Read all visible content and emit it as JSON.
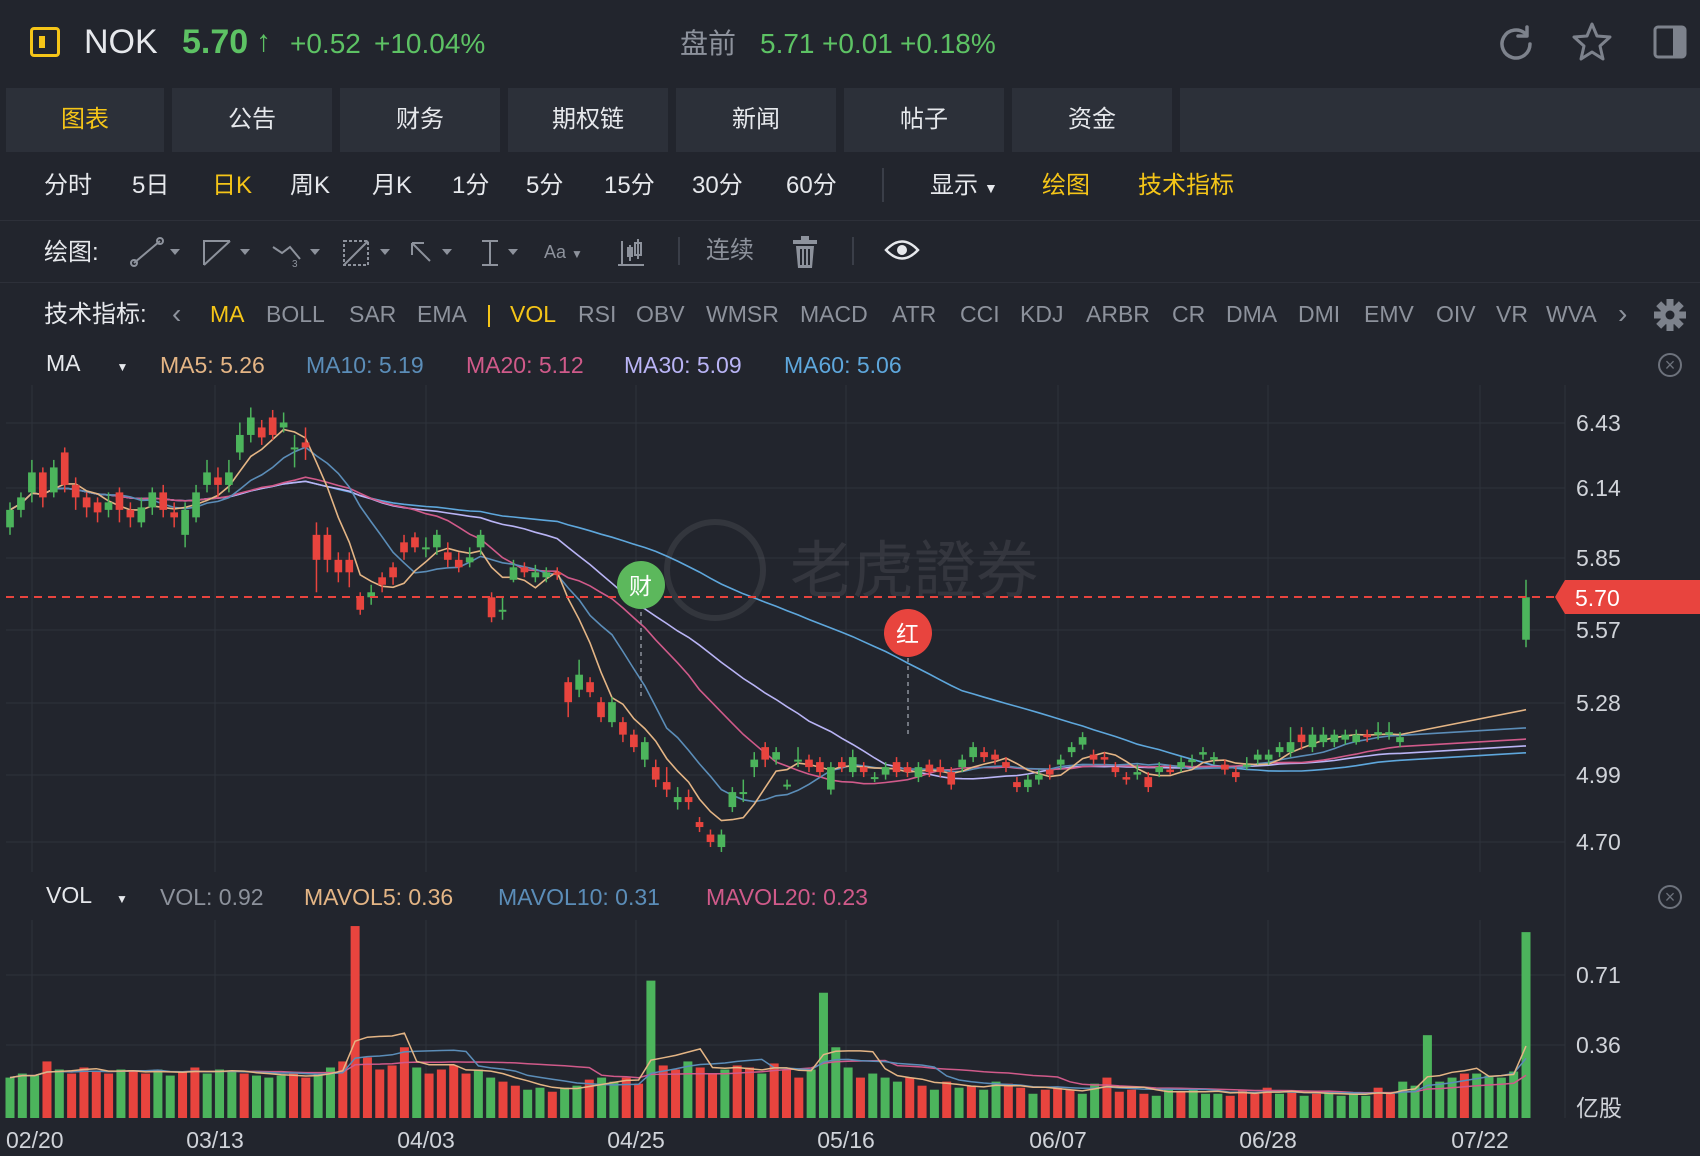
{
  "header": {
    "symbol": "NOK",
    "price": "5.70",
    "arrow": "↑",
    "change": "+0.52",
    "change_pct": "+10.04%",
    "premarket_label": "盘前",
    "premarket_price": "5.71",
    "premarket_change": "+0.01",
    "premarket_pct": "+0.18%"
  },
  "tabs": [
    "图表",
    "公告",
    "财务",
    "期权链",
    "新闻",
    "帖子",
    "资金"
  ],
  "periods": [
    "分时",
    "5日",
    "日K",
    "周K",
    "月K",
    "1分",
    "5分",
    "15分",
    "30分",
    "60分"
  ],
  "period_active": "日K",
  "display_label": "显示",
  "draw_label": "绘图",
  "tech_label": "技术指标",
  "drawbar": {
    "label": "绘图:",
    "continuous": "连续",
    "font_tool": "Aa"
  },
  "indicator_row": {
    "label": "技术指标:",
    "items": [
      "MA",
      "BOLL",
      "SAR",
      "EMA",
      "VOL",
      "RSI",
      "OBV",
      "WMSR",
      "MACD",
      "ATR",
      "CCI",
      "KDJ",
      "ARBR",
      "CR",
      "DMA",
      "DMI",
      "EMV",
      "OIV",
      "VR",
      "WVA"
    ]
  },
  "main_legend": {
    "name": "MA",
    "items": [
      {
        "text": "MA5: 5.26",
        "color": "#e4b585"
      },
      {
        "text": "MA10: 5.19",
        "color": "#5b8db8"
      },
      {
        "text": "MA20: 5.12",
        "color": "#d05a8a"
      },
      {
        "text": "MA30: 5.09",
        "color": "#b9b4f5"
      },
      {
        "text": "MA60: 5.06",
        "color": "#5ea7dc"
      }
    ]
  },
  "vol_legend": {
    "name": "VOL",
    "items": [
      {
        "text": "VOL: 0.92",
        "color": "#8d929c"
      },
      {
        "text": "MAVOL5: 0.36",
        "color": "#e4b585"
      },
      {
        "text": "MAVOL10: 0.31",
        "color": "#5b8db8"
      },
      {
        "text": "MAVOL20: 0.23",
        "color": "#d05a8a"
      }
    ]
  },
  "price_axis": [
    "6.43",
    "6.14",
    "5.85",
    "5.57",
    "5.28",
    "4.99",
    "4.70"
  ],
  "current_price_tag": "5.70",
  "vol_axis": [
    "0.71",
    "0.36"
  ],
  "vol_unit": "亿股",
  "date_axis": [
    "02/20",
    "03/13",
    "04/03",
    "04/25",
    "05/16",
    "06/07",
    "06/28",
    "07/22"
  ],
  "markers": {
    "earnings": "财",
    "dividend": "红"
  },
  "watermark": "老虎證券",
  "colors": {
    "up": "#4cb45c",
    "down": "#e8443e",
    "accent": "#f5c518",
    "price_up": "#5dc264"
  },
  "chart_data": {
    "type": "candlestick",
    "title": "NOK",
    "ylim": [
      4.6,
      6.55
    ],
    "candles": [
      {
        "o": 5.98,
        "c": 6.05,
        "h": 6.08,
        "l": 5.95
      },
      {
        "o": 6.05,
        "c": 6.1,
        "h": 6.12,
        "l": 6.02
      },
      {
        "o": 6.12,
        "c": 6.2,
        "h": 6.25,
        "l": 6.08
      },
      {
        "o": 6.2,
        "c": 6.1,
        "h": 6.22,
        "l": 6.06
      },
      {
        "o": 6.12,
        "c": 6.22,
        "h": 6.25,
        "l": 6.1
      },
      {
        "o": 6.28,
        "c": 6.15,
        "h": 6.3,
        "l": 6.12
      },
      {
        "o": 6.15,
        "c": 6.1,
        "h": 6.18,
        "l": 6.05
      },
      {
        "o": 6.1,
        "c": 6.06,
        "h": 6.12,
        "l": 6.02
      },
      {
        "o": 6.08,
        "c": 6.04,
        "h": 6.1,
        "l": 6.0
      },
      {
        "o": 6.05,
        "c": 6.08,
        "h": 6.12,
        "l": 6.02
      },
      {
        "o": 6.12,
        "c": 6.05,
        "h": 6.14,
        "l": 6.0
      },
      {
        "o": 6.05,
        "c": 6.02,
        "h": 6.08,
        "l": 5.98
      },
      {
        "o": 6.0,
        "c": 6.06,
        "h": 6.1,
        "l": 5.98
      },
      {
        "o": 6.06,
        "c": 6.12,
        "h": 6.14,
        "l": 6.03
      },
      {
        "o": 6.12,
        "c": 6.05,
        "h": 6.15,
        "l": 6.02
      },
      {
        "o": 6.04,
        "c": 6.02,
        "h": 6.08,
        "l": 5.98
      },
      {
        "o": 5.95,
        "c": 6.05,
        "h": 6.08,
        "l": 5.9
      },
      {
        "o": 6.02,
        "c": 6.12,
        "h": 6.15,
        "l": 6.0
      },
      {
        "o": 6.15,
        "c": 6.2,
        "h": 6.25,
        "l": 6.12
      },
      {
        "o": 6.18,
        "c": 6.15,
        "h": 6.22,
        "l": 6.1
      },
      {
        "o": 6.15,
        "c": 6.2,
        "h": 6.25,
        "l": 6.12
      },
      {
        "o": 6.28,
        "c": 6.35,
        "h": 6.4,
        "l": 6.25
      },
      {
        "o": 6.35,
        "c": 6.42,
        "h": 6.46,
        "l": 6.32
      },
      {
        "o": 6.38,
        "c": 6.34,
        "h": 6.41,
        "l": 6.31
      },
      {
        "o": 6.42,
        "c": 6.35,
        "h": 6.45,
        "l": 6.33
      },
      {
        "o": 6.38,
        "c": 6.4,
        "h": 6.44,
        "l": 6.36
      },
      {
        "o": 6.3,
        "c": 6.3,
        "h": 6.35,
        "l": 6.22
      },
      {
        "o": 6.32,
        "c": 6.3,
        "h": 6.38,
        "l": 6.25
      },
      {
        "o": 5.95,
        "c": 5.85,
        "h": 6.0,
        "l": 5.72
      },
      {
        "o": 5.95,
        "c": 5.85,
        "h": 5.98,
        "l": 5.8
      },
      {
        "o": 5.85,
        "c": 5.8,
        "h": 5.88,
        "l": 5.76
      },
      {
        "o": 5.85,
        "c": 5.8,
        "h": 5.88,
        "l": 5.74
      },
      {
        "o": 5.7,
        "c": 5.65,
        "h": 5.72,
        "l": 5.63
      },
      {
        "o": 5.7,
        "c": 5.72,
        "h": 5.75,
        "l": 5.67
      },
      {
        "o": 5.78,
        "c": 5.75,
        "h": 5.8,
        "l": 5.72
      },
      {
        "o": 5.82,
        "c": 5.78,
        "h": 5.84,
        "l": 5.75
      },
      {
        "o": 5.92,
        "c": 5.88,
        "h": 5.95,
        "l": 5.85
      },
      {
        "o": 5.94,
        "c": 5.9,
        "h": 5.96,
        "l": 5.88
      },
      {
        "o": 5.9,
        "c": 5.9,
        "h": 5.94,
        "l": 5.86
      },
      {
        "o": 5.9,
        "c": 5.95,
        "h": 5.97,
        "l": 5.87
      },
      {
        "o": 5.88,
        "c": 5.85,
        "h": 5.92,
        "l": 5.82
      },
      {
        "o": 5.85,
        "c": 5.82,
        "h": 5.88,
        "l": 5.8
      },
      {
        "o": 5.84,
        "c": 5.86,
        "h": 5.9,
        "l": 5.82
      },
      {
        "o": 5.9,
        "c": 5.95,
        "h": 5.97,
        "l": 5.87
      },
      {
        "o": 5.7,
        "c": 5.62,
        "h": 5.72,
        "l": 5.6
      },
      {
        "o": 5.65,
        "c": 5.65,
        "h": 5.7,
        "l": 5.61
      },
      {
        "o": 5.77,
        "c": 5.82,
        "h": 5.85,
        "l": 5.76
      },
      {
        "o": 5.82,
        "c": 5.8,
        "h": 5.84,
        "l": 5.78
      },
      {
        "o": 5.78,
        "c": 5.8,
        "h": 5.83,
        "l": 5.76
      },
      {
        "o": 5.78,
        "c": 5.8,
        "h": 5.82,
        "l": 5.76
      },
      {
        "o": 5.8,
        "c": 5.79,
        "h": 5.82,
        "l": 5.77
      },
      {
        "o": 5.36,
        "c": 5.28,
        "h": 5.38,
        "l": 5.22
      },
      {
        "o": 5.33,
        "c": 5.39,
        "h": 5.45,
        "l": 5.3
      },
      {
        "o": 5.36,
        "c": 5.32,
        "h": 5.38,
        "l": 5.3
      },
      {
        "o": 5.28,
        "c": 5.22,
        "h": 5.3,
        "l": 5.2
      },
      {
        "o": 5.2,
        "c": 5.28,
        "h": 5.3,
        "l": 5.18
      },
      {
        "o": 5.2,
        "c": 5.15,
        "h": 5.22,
        "l": 5.12
      },
      {
        "o": 5.15,
        "c": 5.1,
        "h": 5.17,
        "l": 5.08
      },
      {
        "o": 5.05,
        "c": 5.12,
        "h": 5.14,
        "l": 5.02
      },
      {
        "o": 5.02,
        "c": 4.97,
        "h": 5.05,
        "l": 4.94
      },
      {
        "o": 4.96,
        "c": 4.93,
        "h": 5.02,
        "l": 4.9
      },
      {
        "o": 4.88,
        "c": 4.9,
        "h": 4.94,
        "l": 4.85
      },
      {
        "o": 4.9,
        "c": 4.88,
        "h": 4.93,
        "l": 4.85
      },
      {
        "o": 4.8,
        "c": 4.78,
        "h": 4.82,
        "l": 4.76
      },
      {
        "o": 4.75,
        "c": 4.72,
        "h": 4.77,
        "l": 4.7
      },
      {
        "o": 4.7,
        "c": 4.75,
        "h": 4.77,
        "l": 4.68
      },
      {
        "o": 4.86,
        "c": 4.92,
        "h": 4.94,
        "l": 4.84
      },
      {
        "o": 4.92,
        "c": 4.92,
        "h": 4.97,
        "l": 4.88
      },
      {
        "o": 5.02,
        "c": 5.05,
        "h": 5.08,
        "l": 4.98
      },
      {
        "o": 5.1,
        "c": 5.05,
        "h": 5.12,
        "l": 5.02
      },
      {
        "o": 5.05,
        "c": 5.08,
        "h": 5.1,
        "l": 5.03
      },
      {
        "o": 4.95,
        "c": 4.95,
        "h": 4.97,
        "l": 4.93
      },
      {
        "o": 5.05,
        "c": 5.05,
        "h": 5.1,
        "l": 5.02
      },
      {
        "o": 5.05,
        "c": 5.02,
        "h": 5.07,
        "l": 5.0
      },
      {
        "o": 5.04,
        "c": 5.0,
        "h": 5.06,
        "l": 4.98
      },
      {
        "o": 4.93,
        "c": 5.02,
        "h": 5.04,
        "l": 4.91
      },
      {
        "o": 5.04,
        "c": 5.02,
        "h": 5.06,
        "l": 5.0
      },
      {
        "o": 5.0,
        "c": 5.06,
        "h": 5.09,
        "l": 4.98
      },
      {
        "o": 5.02,
        "c": 5.0,
        "h": 5.04,
        "l": 4.98
      },
      {
        "o": 4.98,
        "c": 4.98,
        "h": 5.0,
        "l": 4.96
      },
      {
        "o": 4.99,
        "c": 5.02,
        "h": 5.04,
        "l": 4.97
      },
      {
        "o": 5.04,
        "c": 5.0,
        "h": 5.06,
        "l": 4.98
      },
      {
        "o": 5.02,
        "c": 5.0,
        "h": 5.04,
        "l": 4.98
      },
      {
        "o": 4.98,
        "c": 5.02,
        "h": 5.04,
        "l": 4.96
      },
      {
        "o": 5.03,
        "c": 5.0,
        "h": 5.05,
        "l": 4.98
      },
      {
        "o": 5.02,
        "c": 5.0,
        "h": 5.05,
        "l": 4.98
      },
      {
        "o": 5.0,
        "c": 4.95,
        "h": 5.02,
        "l": 4.93
      },
      {
        "o": 5.02,
        "c": 5.05,
        "h": 5.07,
        "l": 5.0
      },
      {
        "o": 5.06,
        "c": 5.1,
        "h": 5.12,
        "l": 5.04
      },
      {
        "o": 5.08,
        "c": 5.06,
        "h": 5.1,
        "l": 5.04
      },
      {
        "o": 5.07,
        "c": 5.05,
        "h": 5.09,
        "l": 5.03
      },
      {
        "o": 5.04,
        "c": 5.02,
        "h": 5.06,
        "l": 5.0
      },
      {
        "o": 4.96,
        "c": 4.94,
        "h": 4.98,
        "l": 4.92
      },
      {
        "o": 4.94,
        "c": 4.97,
        "h": 4.99,
        "l": 4.92
      },
      {
        "o": 4.97,
        "c": 4.99,
        "h": 5.01,
        "l": 4.95
      },
      {
        "o": 5.01,
        "c": 4.99,
        "h": 5.03,
        "l": 4.97
      },
      {
        "o": 5.03,
        "c": 5.05,
        "h": 5.07,
        "l": 5.01
      },
      {
        "o": 5.08,
        "c": 5.1,
        "h": 5.12,
        "l": 5.06
      },
      {
        "o": 5.11,
        "c": 5.14,
        "h": 5.16,
        "l": 5.09
      },
      {
        "o": 5.07,
        "c": 5.05,
        "h": 5.09,
        "l": 5.03
      },
      {
        "o": 5.06,
        "c": 5.05,
        "h": 5.08,
        "l": 5.03
      },
      {
        "o": 5.02,
        "c": 5.0,
        "h": 5.04,
        "l": 4.98
      },
      {
        "o": 4.98,
        "c": 4.97,
        "h": 5.0,
        "l": 4.95
      },
      {
        "o": 4.99,
        "c": 5.0,
        "h": 5.03,
        "l": 4.97
      },
      {
        "o": 4.98,
        "c": 4.94,
        "h": 5.0,
        "l": 4.92
      },
      {
        "o": 5.0,
        "c": 5.02,
        "h": 5.04,
        "l": 4.98
      },
      {
        "o": 5.01,
        "c": 5.0,
        "h": 5.03,
        "l": 4.99
      },
      {
        "o": 5.02,
        "c": 5.04,
        "h": 5.06,
        "l": 5.0
      },
      {
        "o": 5.04,
        "c": 5.05,
        "h": 5.07,
        "l": 5.02
      },
      {
        "o": 5.07,
        "c": 5.08,
        "h": 5.1,
        "l": 5.05
      },
      {
        "o": 5.05,
        "c": 5.06,
        "h": 5.08,
        "l": 5.03
      },
      {
        "o": 5.03,
        "c": 5.01,
        "h": 5.05,
        "l": 4.99
      },
      {
        "o": 5.0,
        "c": 4.98,
        "h": 5.02,
        "l": 4.96
      },
      {
        "o": 5.03,
        "c": 5.03,
        "h": 5.06,
        "l": 5.01
      },
      {
        "o": 5.05,
        "c": 5.07,
        "h": 5.09,
        "l": 5.03
      },
      {
        "o": 5.05,
        "c": 5.07,
        "h": 5.09,
        "l": 5.03
      },
      {
        "o": 5.08,
        "c": 5.1,
        "h": 5.12,
        "l": 5.06
      },
      {
        "o": 5.08,
        "c": 5.12,
        "h": 5.18,
        "l": 5.06
      },
      {
        "o": 5.15,
        "c": 5.12,
        "h": 5.18,
        "l": 5.09
      },
      {
        "o": 5.1,
        "c": 5.15,
        "h": 5.18,
        "l": 5.08
      },
      {
        "o": 5.12,
        "c": 5.15,
        "h": 5.18,
        "l": 5.1
      },
      {
        "o": 5.12,
        "c": 5.15,
        "h": 5.17,
        "l": 5.1
      },
      {
        "o": 5.13,
        "c": 5.15,
        "h": 5.17,
        "l": 5.11
      },
      {
        "o": 5.12,
        "c": 5.15,
        "h": 5.17,
        "l": 5.11
      },
      {
        "o": 5.15,
        "c": 5.14,
        "h": 5.17,
        "l": 5.12
      },
      {
        "o": 5.15,
        "c": 5.16,
        "h": 5.2,
        "l": 5.13
      },
      {
        "o": 5.15,
        "c": 5.16,
        "h": 5.2,
        "l": 5.13
      },
      {
        "o": 5.12,
        "c": 5.14,
        "h": 5.16,
        "l": 5.1
      }
    ],
    "last_candle": {
      "o": 5.53,
      "c": 5.7,
      "h": 5.77,
      "l": 5.5
    },
    "volume": [
      0.2,
      0.22,
      0.21,
      0.28,
      0.24,
      0.22,
      0.25,
      0.23,
      0.22,
      0.24,
      0.23,
      0.22,
      0.24,
      0.21,
      0.23,
      0.25,
      0.22,
      0.24,
      0.23,
      0.22,
      0.21,
      0.2,
      0.21,
      0.22,
      0.2,
      0.22,
      0.25,
      0.28,
      0.95,
      0.3,
      0.24,
      0.26,
      0.35,
      0.25,
      0.22,
      0.24,
      0.26,
      0.22,
      0.24,
      0.2,
      0.18,
      0.16,
      0.14,
      0.15,
      0.13,
      0.15,
      0.16,
      0.19,
      0.2,
      0.18,
      0.2,
      0.17,
      0.68,
      0.26,
      0.24,
      0.28,
      0.25,
      0.22,
      0.24,
      0.26,
      0.25,
      0.22,
      0.27,
      0.24,
      0.2,
      0.24,
      0.62,
      0.35,
      0.25,
      0.2,
      0.22,
      0.2,
      0.18,
      0.2,
      0.16,
      0.14,
      0.18,
      0.15,
      0.16,
      0.14,
      0.18,
      0.17,
      0.15,
      0.12,
      0.14,
      0.15,
      0.14,
      0.12,
      0.17,
      0.2,
      0.13,
      0.14,
      0.12,
      0.11,
      0.15,
      0.13,
      0.14,
      0.12,
      0.12,
      0.11,
      0.14,
      0.12,
      0.15,
      0.12,
      0.13,
      0.11,
      0.12,
      0.13,
      0.11,
      0.12,
      0.11,
      0.15,
      0.12,
      0.18,
      0.16,
      0.41,
      0.18,
      0.2,
      0.22,
      0.22,
      0.21,
      0.2,
      0.23,
      0.92
    ],
    "volume_ylim": [
      0,
      0.98
    ]
  }
}
